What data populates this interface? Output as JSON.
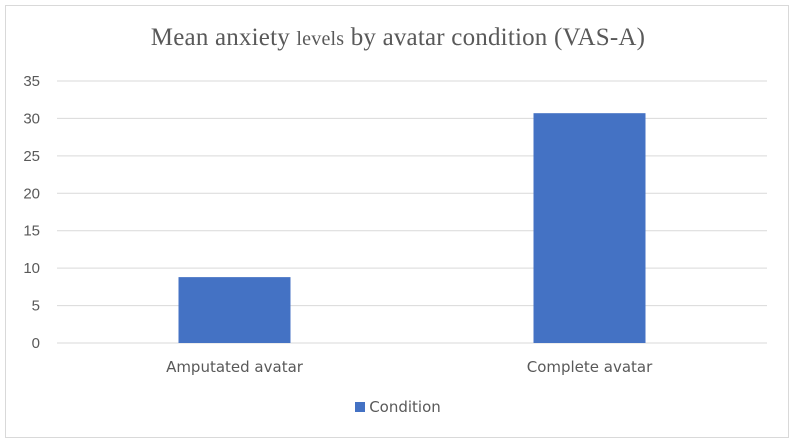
{
  "chart_data": {
    "type": "bar",
    "title_parts": [
      "Mean anxiety ",
      "levels",
      " by avatar condition (VAS-A)"
    ],
    "categories": [
      "Amputated avatar",
      "Complete avatar"
    ],
    "series": [
      {
        "name": "Condition",
        "values": [
          8.8,
          30.7
        ],
        "color": "#4472C4"
      }
    ],
    "ylim": [
      0,
      35
    ],
    "yticks": [
      "0",
      "5",
      "10",
      "15",
      "20",
      "25",
      "30",
      "35"
    ],
    "grid": true,
    "legend_position": "bottom"
  }
}
